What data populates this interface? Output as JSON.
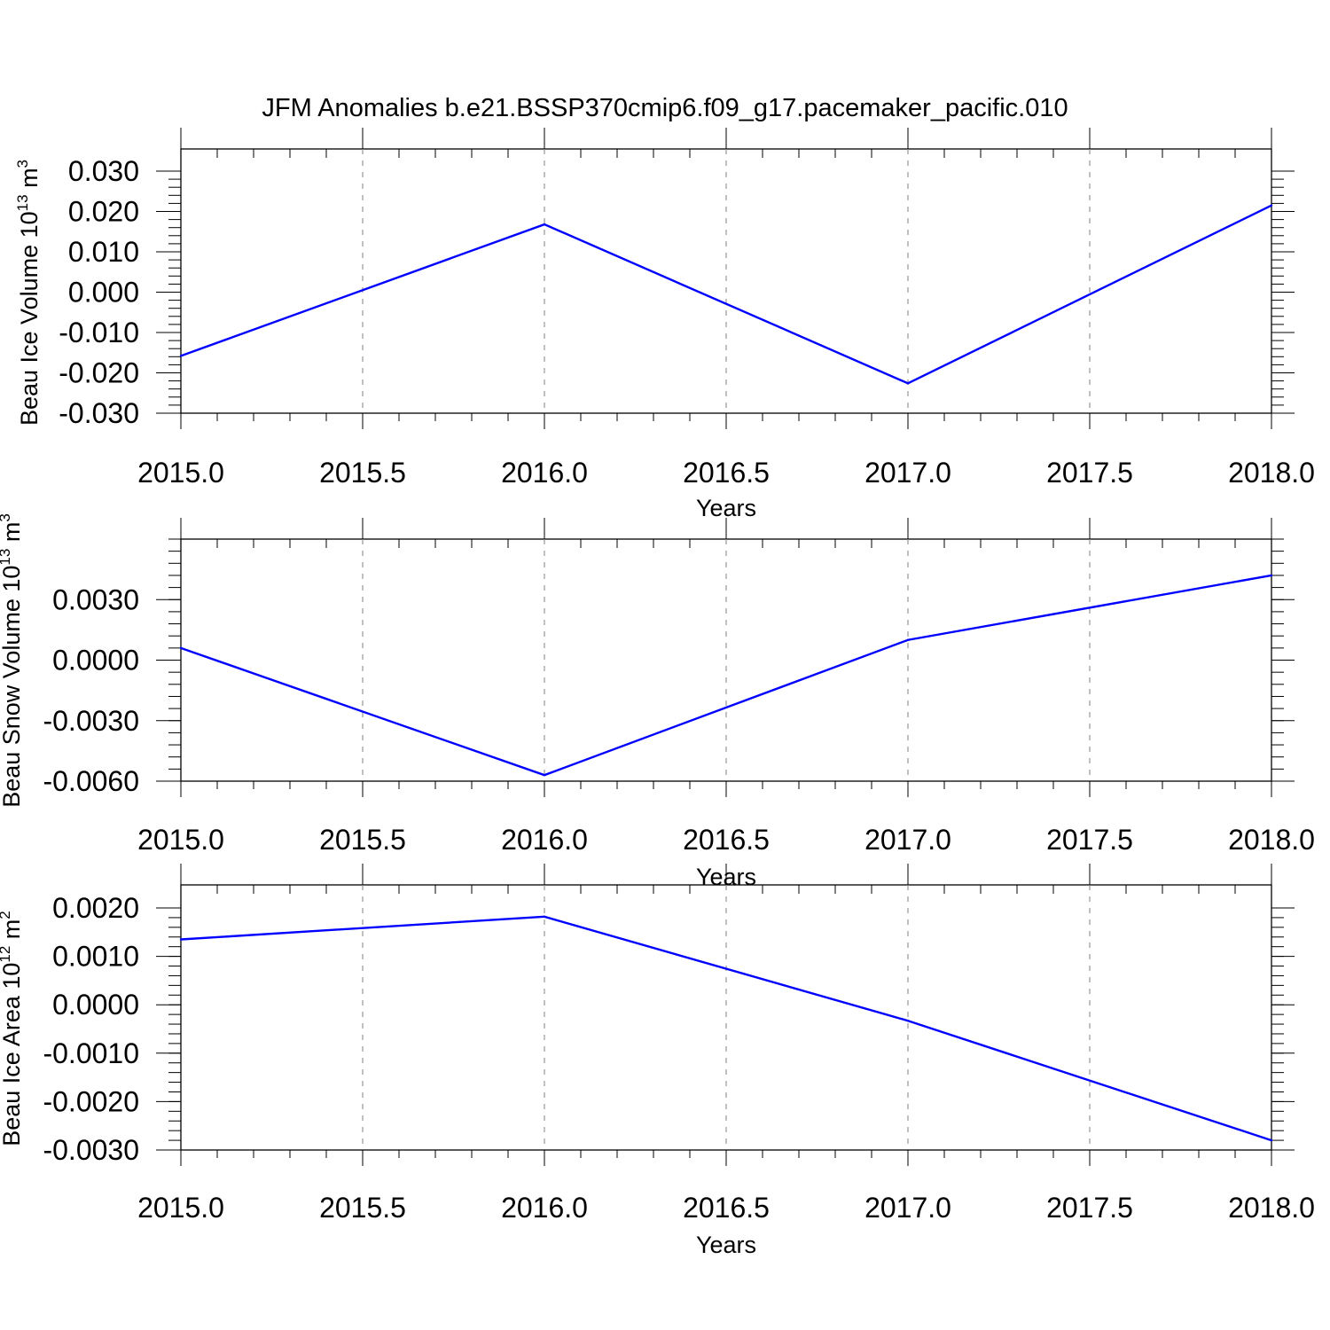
{
  "chart_data": [
    {
      "type": "line",
      "title": "JFM Anomalies b.e21.BSSP370cmip6.f09_g17.pacemaker_pacific.010",
      "xlabel": "Years",
      "ylabel": "Beau Ice Volume 10^13 m^3",
      "ylabel_parts": {
        "base": "Beau Ice Volume 10",
        "exp": "13",
        "unit": " m",
        "unit_exp": "3"
      },
      "xlim": [
        2015.0,
        2018.0
      ],
      "ylim": [
        -0.03,
        0.03
      ],
      "xticks": [
        "2015.0",
        "2015.5",
        "2016.0",
        "2016.5",
        "2017.0",
        "2017.5",
        "2018.0"
      ],
      "yticks": [
        "0.030",
        "0.020",
        "0.010",
        "0.000",
        "-0.010",
        "-0.020",
        "-0.030"
      ],
      "ytick_values": [
        0.03,
        0.02,
        0.01,
        0.0,
        -0.01,
        -0.02,
        -0.03
      ],
      "grid": "vertical dashed",
      "series": [
        {
          "x": [
            2015,
            2016,
            2017,
            2018
          ],
          "y": [
            -0.0158,
            0.0168,
            -0.0226,
            0.0215
          ],
          "color": "#0000ff"
        }
      ]
    },
    {
      "type": "line",
      "title": "",
      "xlabel": "Years",
      "ylabel": "Beau Snow Volume 10^13 m^3",
      "ylabel_parts": {
        "base": "Beau Snow Volume 10",
        "exp": "13",
        "unit": " m",
        "unit_exp": "3"
      },
      "xlim": [
        2015.0,
        2018.0
      ],
      "ylim": [
        -0.006,
        0.006
      ],
      "xticks": [
        "2015.0",
        "2015.5",
        "2016.0",
        "2016.5",
        "2017.0",
        "2017.5",
        "2018.0"
      ],
      "yticks": [
        "0.0030",
        "0.0000",
        "-0.0030",
        "-0.0060"
      ],
      "ytick_values": [
        0.003,
        0.0,
        -0.003,
        -0.006
      ],
      "grid": "vertical dashed",
      "series": [
        {
          "x": [
            2015,
            2016,
            2017,
            2018
          ],
          "y": [
            0.0006,
            -0.0057,
            0.001,
            0.0042
          ],
          "color": "#0000ff"
        }
      ]
    },
    {
      "type": "line",
      "title": "",
      "xlabel": "Years",
      "ylabel": "Beau Ice Area 10^12 m^2",
      "ylabel_parts": {
        "base": "Beau Ice Area 10",
        "exp": "12",
        "unit": " m",
        "unit_exp": "2"
      },
      "xlim": [
        2015.0,
        2018.0
      ],
      "ylim": [
        -0.003,
        0.002
      ],
      "xticks": [
        "2015.0",
        "2015.5",
        "2016.0",
        "2016.5",
        "2017.0",
        "2017.5",
        "2018.0"
      ],
      "yticks": [
        "0.0020",
        "0.0010",
        "0.0000",
        "-0.0010",
        "-0.0020",
        "-0.0030"
      ],
      "ytick_values": [
        0.002,
        0.001,
        0.0,
        -0.001,
        -0.002,
        -0.003
      ],
      "grid": "vertical dashed",
      "series": [
        {
          "x": [
            2015,
            2016,
            2017,
            2018
          ],
          "y": [
            0.00135,
            0.00182,
            -0.00033,
            -0.0028
          ],
          "color": "#0000ff"
        }
      ]
    }
  ]
}
